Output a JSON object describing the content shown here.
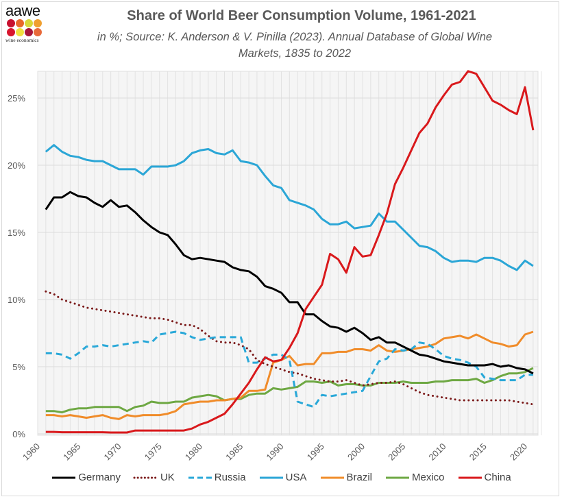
{
  "logo": {
    "text": "aawe",
    "subtext": "wine economics",
    "dot_colors": [
      "#c8102e",
      "#e8682a",
      "#d8d83a",
      "#f0a030",
      "#d8162e",
      "#f0e040",
      "#a8163a",
      "#e86a3a"
    ]
  },
  "chart_data": {
    "type": "line",
    "title": "Share of World Beer Consumption Volume, 1961-2021",
    "subtitle": "in %; Source: K. Anderson & V. Pinilla (2023). Annual Database of Global Wine Markets, 1835 to 2022",
    "subtitle_lines": [
      "in %; Source: K. Anderson & V. Pinilla (2023). Annual Database of Global Wine",
      "Markets, 1835 to 2022"
    ],
    "xlabel": "",
    "ylabel": "",
    "xlim": [
      1960,
      2022
    ],
    "ylim": [
      0,
      27
    ],
    "grid": true,
    "legend_position": "bottom",
    "x_ticks": [
      1960,
      1965,
      1970,
      1975,
      1980,
      1985,
      1990,
      1995,
      2000,
      2005,
      2010,
      2015,
      2020
    ],
    "x_tick_labels": [
      "1960",
      "1965",
      "1970",
      "1975",
      "1980",
      "1985",
      "1990",
      "1995",
      "2000",
      "2005",
      "2010",
      "2015",
      "2020"
    ],
    "y_ticks": [
      0,
      5,
      10,
      15,
      20,
      25
    ],
    "y_tick_labels": [
      "0%",
      "5%",
      "10%",
      "15%",
      "20%",
      "25%"
    ],
    "x": [
      1961,
      1962,
      1963,
      1964,
      1965,
      1966,
      1967,
      1968,
      1969,
      1970,
      1971,
      1972,
      1973,
      1974,
      1975,
      1976,
      1977,
      1978,
      1979,
      1980,
      1981,
      1982,
      1983,
      1984,
      1985,
      1986,
      1987,
      1988,
      1989,
      1990,
      1991,
      1992,
      1993,
      1994,
      1995,
      1996,
      1997,
      1998,
      1999,
      2000,
      2001,
      2002,
      2003,
      2004,
      2005,
      2006,
      2007,
      2008,
      2009,
      2010,
      2011,
      2012,
      2013,
      2014,
      2015,
      2016,
      2017,
      2018,
      2019,
      2020,
      2021
    ],
    "series": [
      {
        "name": "Germany",
        "color": "#000000",
        "style": "solid",
        "values": [
          16.7,
          17.6,
          17.6,
          18.0,
          17.7,
          17.6,
          17.2,
          16.9,
          17.4,
          16.9,
          17.0,
          16.5,
          15.9,
          15.4,
          15.0,
          14.8,
          14.1,
          13.3,
          13.0,
          13.1,
          13.0,
          12.9,
          12.8,
          12.4,
          12.2,
          12.1,
          11.7,
          11.0,
          10.8,
          10.5,
          9.8,
          9.8,
          8.9,
          8.9,
          8.4,
          8.0,
          7.9,
          7.6,
          7.9,
          7.5,
          7.0,
          7.2,
          6.8,
          6.8,
          6.5,
          6.2,
          5.9,
          5.8,
          5.6,
          5.4,
          5.3,
          5.2,
          5.1,
          5.1,
          5.1,
          5.2,
          5.0,
          5.1,
          4.9,
          4.8,
          4.5
        ]
      },
      {
        "name": "UK",
        "color": "#7b1a1a",
        "style": "dotted",
        "values": [
          10.6,
          10.4,
          10.0,
          9.8,
          9.6,
          9.4,
          9.3,
          9.2,
          9.1,
          9.0,
          8.9,
          8.8,
          8.7,
          8.6,
          8.6,
          8.5,
          8.3,
          8.1,
          8.1,
          7.8,
          7.3,
          6.9,
          6.8,
          6.8,
          6.6,
          6.3,
          5.5,
          5.2,
          5.0,
          4.8,
          4.6,
          4.5,
          4.3,
          4.1,
          4.0,
          3.9,
          3.9,
          4.0,
          3.8,
          3.6,
          3.7,
          3.8,
          3.8,
          3.9,
          3.7,
          3.4,
          3.1,
          2.9,
          2.8,
          2.7,
          2.6,
          2.5,
          2.5,
          2.5,
          2.5,
          2.5,
          2.5,
          2.5,
          2.4,
          2.3,
          2.2
        ]
      },
      {
        "name": "Russia",
        "color": "#29a8d8",
        "style": "dashed",
        "values": [
          6.0,
          6.0,
          5.9,
          5.6,
          6.0,
          6.5,
          6.5,
          6.6,
          6.5,
          6.6,
          6.7,
          6.8,
          6.9,
          6.8,
          7.4,
          7.5,
          7.6,
          7.5,
          7.2,
          7.0,
          7.1,
          7.2,
          7.2,
          7.2,
          7.2,
          5.3,
          5.3,
          5.6,
          5.9,
          5.9,
          5.5,
          2.4,
          2.2,
          2.0,
          2.9,
          2.8,
          2.9,
          3.0,
          3.1,
          3.2,
          4.3,
          5.4,
          5.6,
          6.3,
          6.2,
          6.3,
          6.8,
          6.7,
          6.3,
          5.8,
          5.6,
          5.5,
          5.3,
          5.0,
          4.2,
          4.1,
          4.0,
          4.0,
          4.0,
          4.4,
          4.4
        ]
      },
      {
        "name": "USA",
        "color": "#2ba6d6",
        "style": "solid",
        "values": [
          21.0,
          21.5,
          21.0,
          20.7,
          20.6,
          20.4,
          20.3,
          20.3,
          20.0,
          19.7,
          19.7,
          19.7,
          19.3,
          19.9,
          19.9,
          19.9,
          20.0,
          20.3,
          20.9,
          21.1,
          21.2,
          20.9,
          20.8,
          21.1,
          20.3,
          20.2,
          20.0,
          19.2,
          18.5,
          18.3,
          17.4,
          17.2,
          17.0,
          16.7,
          16.0,
          15.6,
          15.6,
          15.8,
          15.3,
          15.4,
          15.5,
          16.4,
          15.8,
          15.8,
          15.2,
          14.6,
          14.0,
          13.9,
          13.6,
          13.1,
          12.8,
          12.9,
          12.9,
          12.8,
          13.1,
          13.1,
          12.9,
          12.5,
          12.2,
          12.9,
          12.5
        ]
      },
      {
        "name": "Brazil",
        "color": "#f08c2a",
        "style": "solid",
        "values": [
          1.4,
          1.4,
          1.3,
          1.4,
          1.3,
          1.2,
          1.3,
          1.4,
          1.2,
          1.1,
          1.4,
          1.3,
          1.4,
          1.4,
          1.4,
          1.5,
          1.7,
          2.2,
          2.3,
          2.4,
          2.4,
          2.5,
          2.5,
          2.6,
          2.7,
          3.2,
          3.2,
          3.3,
          5.3,
          5.5,
          5.8,
          5.1,
          5.2,
          5.2,
          6.0,
          6.0,
          6.1,
          6.1,
          6.3,
          6.3,
          6.2,
          6.6,
          6.2,
          6.1,
          6.2,
          6.3,
          6.4,
          6.5,
          6.7,
          7.1,
          7.2,
          7.3,
          7.1,
          7.4,
          7.1,
          6.8,
          6.7,
          6.5,
          6.6,
          7.4,
          7.6
        ]
      },
      {
        "name": "Mexico",
        "color": "#6ea843",
        "style": "solid",
        "values": [
          1.7,
          1.7,
          1.6,
          1.8,
          1.9,
          1.9,
          2.0,
          2.0,
          2.0,
          2.0,
          1.7,
          2.0,
          2.1,
          2.4,
          2.3,
          2.3,
          2.4,
          2.4,
          2.7,
          2.8,
          2.9,
          2.8,
          2.5,
          2.6,
          2.6,
          2.9,
          3.0,
          3.0,
          3.4,
          3.3,
          3.4,
          3.5,
          3.9,
          3.9,
          3.8,
          3.9,
          3.6,
          3.7,
          3.7,
          3.6,
          3.6,
          3.8,
          3.8,
          3.8,
          3.9,
          3.8,
          3.8,
          3.8,
          3.9,
          3.9,
          4.0,
          4.0,
          4.0,
          4.1,
          3.8,
          4.0,
          4.3,
          4.5,
          4.5,
          4.6,
          4.9
        ]
      },
      {
        "name": "China",
        "color": "#d9191c",
        "style": "solid",
        "values": [
          0.15,
          0.15,
          0.12,
          0.12,
          0.12,
          0.12,
          0.12,
          0.12,
          0.1,
          0.1,
          0.1,
          0.25,
          0.25,
          0.25,
          0.25,
          0.25,
          0.25,
          0.25,
          0.4,
          0.7,
          0.9,
          1.2,
          1.5,
          2.2,
          3.0,
          3.8,
          4.8,
          5.7,
          5.4,
          5.5,
          6.4,
          7.5,
          9.3,
          10.2,
          11.1,
          13.4,
          13.0,
          12.0,
          13.9,
          13.2,
          13.3,
          14.8,
          16.4,
          18.6,
          19.8,
          21.1,
          22.4,
          23.1,
          24.3,
          25.2,
          26.0,
          26.2,
          27.0,
          26.8,
          25.8,
          24.8,
          24.5,
          24.1,
          23.8,
          25.8,
          22.6
        ]
      }
    ]
  }
}
